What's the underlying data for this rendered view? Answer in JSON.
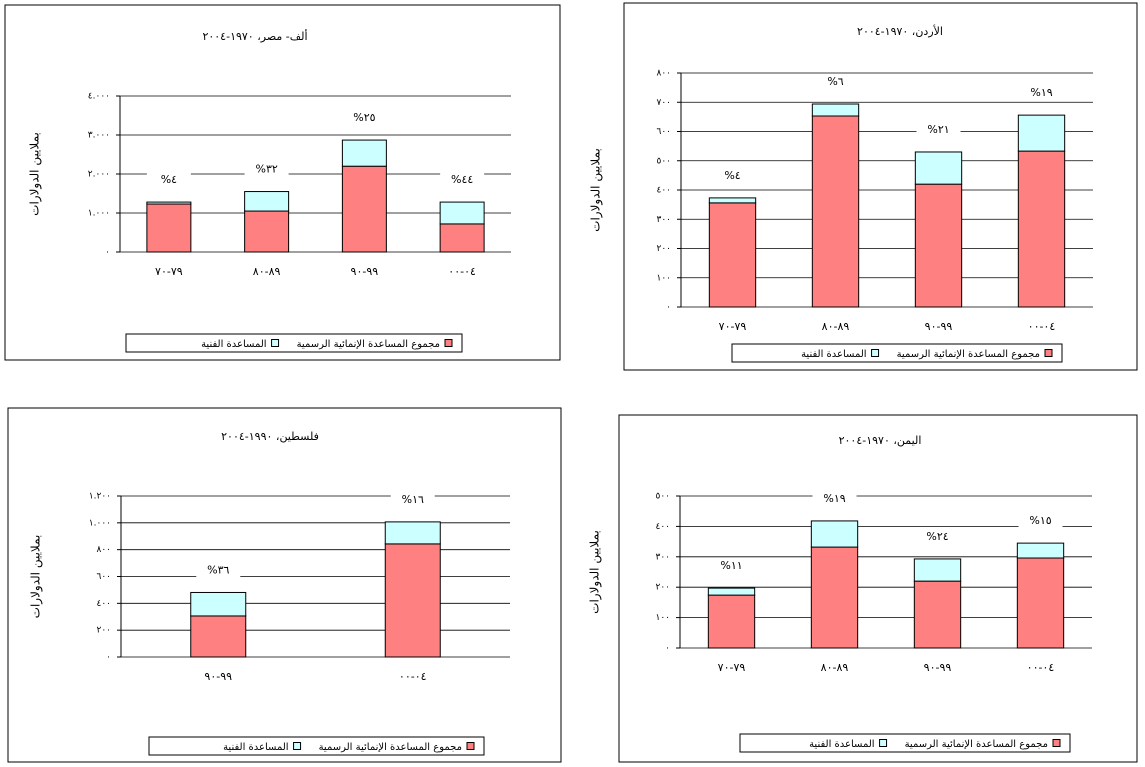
{
  "chart_data": [
    {
      "type": "bar",
      "stacked": true,
      "title": "ألف- مصر، ١٩٧٠-٢٠٠٤",
      "y_label": "بملايين الدولارات",
      "categories": [
        "٧٩-٧٠",
        "٨٩-٨٠",
        "٩٩-٩٠",
        "٠٤-٠٠"
      ],
      "series": [
        {
          "name": "مجموع المساعدة الإنمائية الرسمية",
          "color": "#ff8080",
          "values": [
            1230,
            1050,
            2200,
            720
          ]
        },
        {
          "name": "المساعدة الفنية",
          "color": "#ccffff",
          "values": [
            50,
            500,
            670,
            560
          ]
        }
      ],
      "annotations": [
        "%٤",
        "%٣٢",
        "%٢٥",
        "%٤٤"
      ],
      "ylim": [
        0,
        4000
      ],
      "yticks": [
        {
          "value": 0,
          "label": "٠"
        },
        {
          "value": 1000,
          "label": "١.٠٠٠"
        },
        {
          "value": 2000,
          "label": "٢.٠٠٠"
        },
        {
          "value": 3000,
          "label": "٣.٠٠٠"
        },
        {
          "value": 4000,
          "label": "٤.٠٠٠"
        }
      ],
      "grid": true
    },
    {
      "type": "bar",
      "stacked": true,
      "title": "الأردن، ١٩٧٠-٢٠٠٤",
      "y_label": "بملايين الدولارات",
      "categories": [
        "٧٩-٧٠",
        "٨٩-٨٠",
        "٩٩-٩٠",
        "٠٤-٠٠"
      ],
      "series": [
        {
          "name": "مجموع المساعدة الإنمائية الرسمية",
          "color": "#ff8080",
          "values": [
            356,
            653,
            420,
            533
          ]
        },
        {
          "name": "المساعدة الفنية",
          "color": "#ccffff",
          "values": [
            17,
            41,
            110,
            123
          ]
        }
      ],
      "annotations": [
        "%٤",
        "%٦",
        "%٢١",
        "%١٩"
      ],
      "ylim": [
        0,
        800
      ],
      "yticks": [
        {
          "value": 0,
          "label": "٠"
        },
        {
          "value": 100,
          "label": "١٠٠"
        },
        {
          "value": 200,
          "label": "٢٠٠"
        },
        {
          "value": 300,
          "label": "٣٠٠"
        },
        {
          "value": 400,
          "label": "٤٠٠"
        },
        {
          "value": 500,
          "label": "٥٠٠"
        },
        {
          "value": 600,
          "label": "٦٠٠"
        },
        {
          "value": 700,
          "label": "٧٠٠"
        },
        {
          "value": 800,
          "label": "٨٠٠"
        }
      ],
      "grid": true
    },
    {
      "type": "bar",
      "stacked": true,
      "title": "فلسطين، ١٩٩٠-٢٠٠٤",
      "y_label": "بملايين الدولارات",
      "categories": [
        "٩٩-٩٠",
        "٠٤-٠٠"
      ],
      "series": [
        {
          "name": "مجموع المساعدة الإنمائية الرسمية",
          "color": "#ff8080",
          "values": [
            306,
            843
          ]
        },
        {
          "name": "المساعدة الفنية",
          "color": "#ccffff",
          "values": [
            175,
            164
          ]
        }
      ],
      "annotations": [
        "%٣٦",
        "%١٦"
      ],
      "ylim": [
        0,
        1200
      ],
      "yticks": [
        {
          "value": 0,
          "label": "٠"
        },
        {
          "value": 200,
          "label": "٢٠٠"
        },
        {
          "value": 400,
          "label": "٤٠٠"
        },
        {
          "value": 600,
          "label": "٦٠٠"
        },
        {
          "value": 800,
          "label": "٨٠٠"
        },
        {
          "value": 1000,
          "label": "١.٠٠٠"
        },
        {
          "value": 1200,
          "label": "١.٢٠٠"
        }
      ],
      "grid": true
    },
    {
      "type": "bar",
      "stacked": true,
      "title": "اليمن، ١٩٧٠-٢٠٠٤",
      "y_label": "بملايين الدولارات",
      "categories": [
        "٧٩-٧٠",
        "٨٩-٨٠",
        "٩٩-٩٠",
        "٠٤-٠٠"
      ],
      "series": [
        {
          "name": "مجموع المساعدة الإنمائية الرسمية",
          "color": "#ff8080",
          "values": [
            174,
            332,
            220,
            296
          ]
        },
        {
          "name": "المساعدة الفنية",
          "color": "#ccffff",
          "values": [
            23,
            86,
            73,
            49
          ]
        }
      ],
      "annotations": [
        "%١١",
        "%١٩",
        "%٢٤",
        "%١٥"
      ],
      "ylim": [
        0,
        500
      ],
      "yticks": [
        {
          "value": 0,
          "label": "٠"
        },
        {
          "value": 100,
          "label": "١٠٠"
        },
        {
          "value": 200,
          "label": "٢٠٠"
        },
        {
          "value": 300,
          "label": "٣٠٠"
        },
        {
          "value": 400,
          "label": "٤٠٠"
        },
        {
          "value": 500,
          "label": "٥٠٠"
        }
      ],
      "grid": true
    }
  ]
}
